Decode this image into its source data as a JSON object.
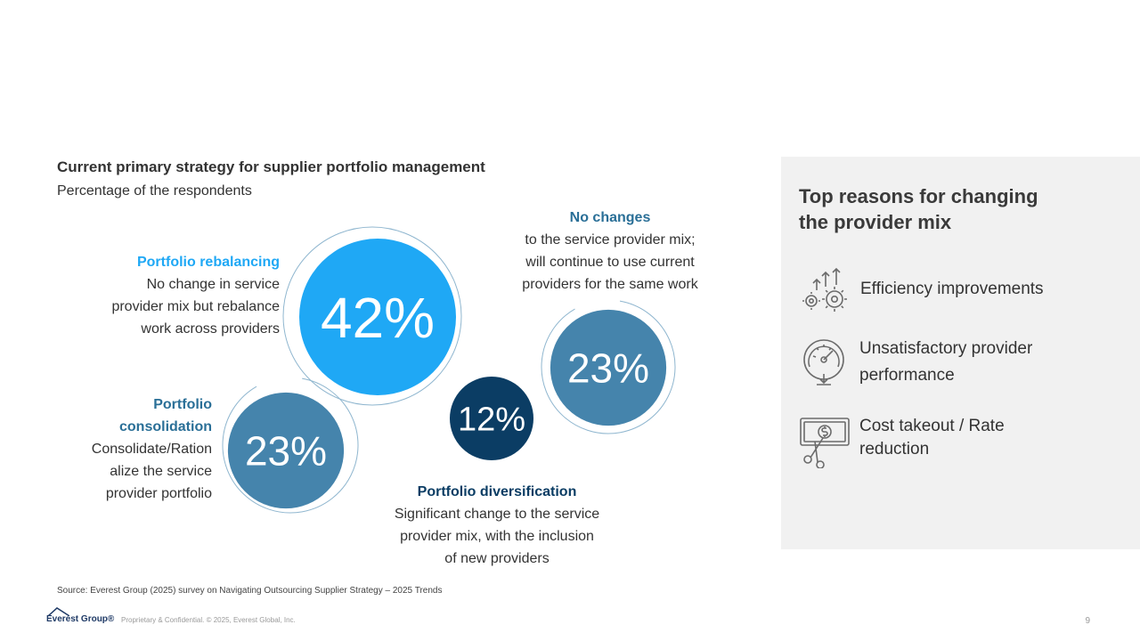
{
  "chart_data": {
    "type": "bubble",
    "title": "Current primary strategy for supplier portfolio management",
    "subtitle": "Percentage of the respondents",
    "series": [
      {
        "category": "Portfolio rebalancing",
        "value": 42,
        "value_label": "42%",
        "description": "No change in service provider mix but rebalance work across providers",
        "color": "#1fa8f5"
      },
      {
        "category": "Portfolio consolidation",
        "value": 23,
        "value_label": "23%",
        "description": "Consolidate/Rationalize the service provider portfolio",
        "color": "#4584ac"
      },
      {
        "category": "Portfolio diversification",
        "value": 12,
        "value_label": "12%",
        "description": "Significant change to the service provider mix, with the inclusion of new providers",
        "color": "#0b3d64"
      },
      {
        "category": "No changes",
        "value": 23,
        "value_label": "23%",
        "description": "to the service provider mix; will continue to use current providers for the same work",
        "color": "#4584ac"
      }
    ]
  },
  "labels": {
    "rebalancing": {
      "heading": "Portfolio rebalancing",
      "l1": "No change in service",
      "l2": "provider mix but rebalance",
      "l3": "work across providers",
      "color": "#1fa8f5"
    },
    "consolidation": {
      "h1": "Portfolio",
      "h2": "consolidation",
      "l1": "Consolidate/Ration",
      "l2": "alize the service",
      "l3": "provider portfolio",
      "color": "#2a6f97"
    },
    "diversification": {
      "heading": "Portfolio diversification",
      "l1": "Significant change to the service",
      "l2": "provider mix, with the inclusion",
      "l3": "of new providers",
      "color": "#0b3d64"
    },
    "no_changes": {
      "heading": "No changes",
      "l1": "to the service provider mix;",
      "l2": "will continue to use current",
      "l3": "providers for the same work",
      "color": "#2a6f97"
    }
  },
  "panel": {
    "title_l1": "Top reasons for changing",
    "title_l2": "the provider mix",
    "reasons": [
      {
        "icon": "gears-arrows-icon",
        "text_l1": "Efficiency improvements",
        "text_l2": ""
      },
      {
        "icon": "speedometer-icon",
        "text_l1": "Unsatisfactory provider",
        "text_l2": "performance"
      },
      {
        "icon": "cut-banknote-icon",
        "text_l1": "Cost takeout / Rate",
        "text_l2": "reduction"
      }
    ]
  },
  "footer": {
    "source": "Source: Everest Group (2025) survey on Navigating Outsourcing Supplier Strategy – 2025 Trends",
    "logo_text": "Everest Group®",
    "confidential": "Proprietary & Confidential. © 2025, Everest Global, Inc.",
    "page_number": "9"
  }
}
